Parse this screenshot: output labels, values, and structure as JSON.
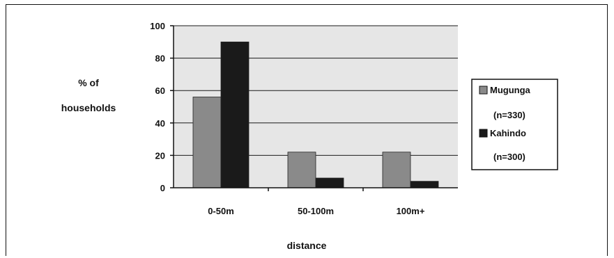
{
  "chart_data": {
    "type": "bar",
    "categories": [
      "0-50m",
      "50-100m",
      "100m+"
    ],
    "series": [
      {
        "name": "Mugunga",
        "count_label": "(n=330)",
        "values": [
          56,
          22,
          22
        ],
        "color": "#8a8a8a"
      },
      {
        "name": "Kahindo",
        "count_label": "(n=300)",
        "values": [
          90,
          6,
          4
        ],
        "color": "#1a1a1a"
      }
    ],
    "ylabel_lines": [
      "% of",
      "households"
    ],
    "xlabel": "distance",
    "ylim": [
      0,
      100
    ],
    "yticks": [
      0,
      20,
      40,
      60,
      80,
      100
    ],
    "grid": true,
    "legend_position": "right",
    "plot_background": "#e6e6e6",
    "grid_color": "#1a1a1a"
  }
}
